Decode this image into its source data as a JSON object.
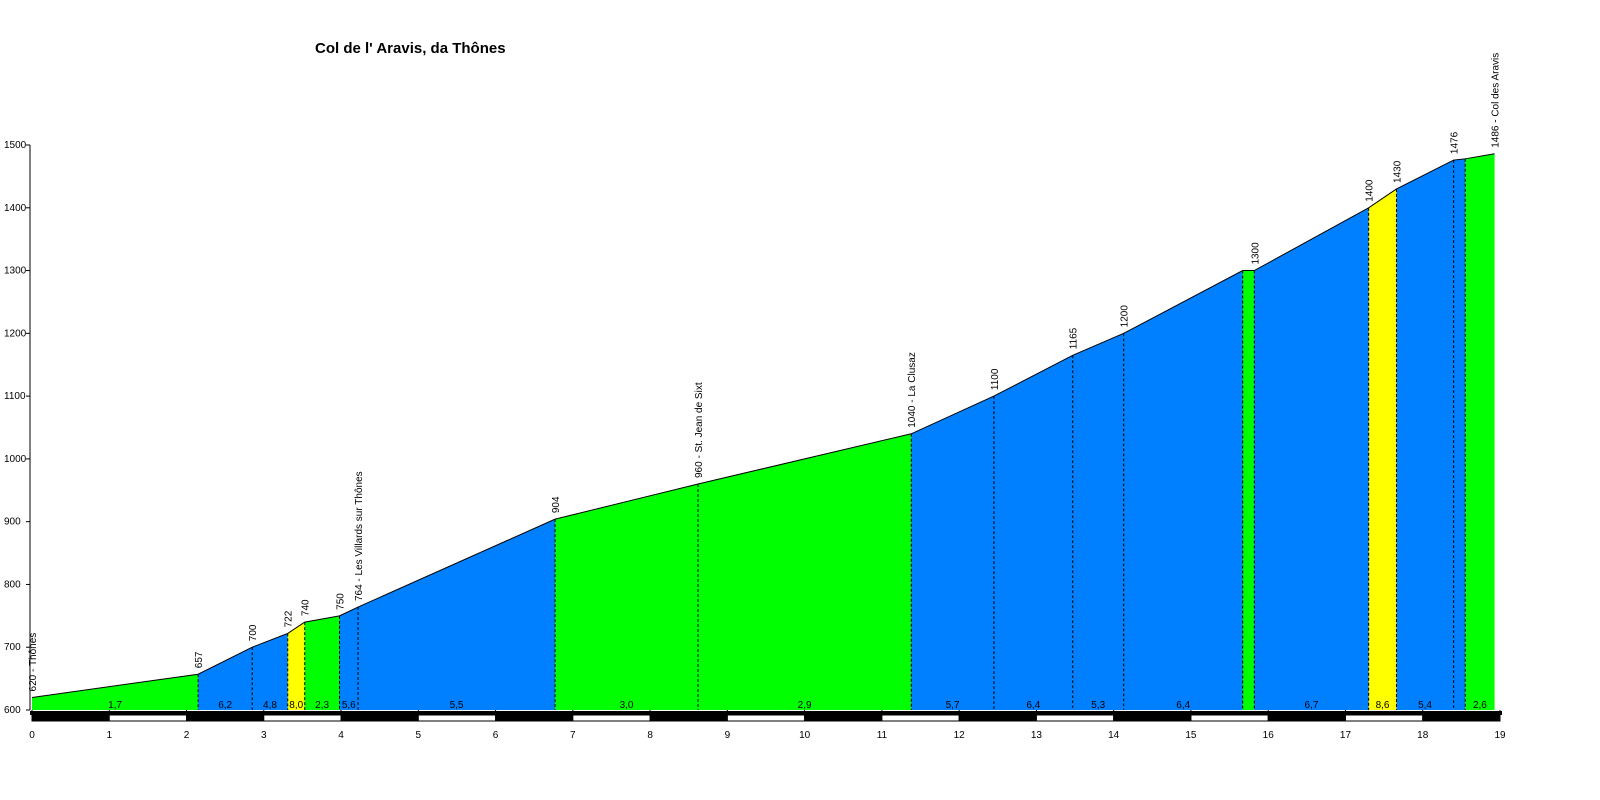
{
  "chart_data": {
    "type": "profile",
    "title": "Col de l' Aravis, da Thônes",
    "xlim": [
      0,
      19
    ],
    "ylim": [
      600,
      1500
    ],
    "xticks": [
      0,
      1,
      2,
      3,
      4,
      5,
      6,
      7,
      8,
      9,
      10,
      11,
      12,
      13,
      14,
      15,
      16,
      17,
      18,
      19
    ],
    "yticks": [
      600,
      700,
      800,
      900,
      1000,
      1100,
      1200,
      1300,
      1400,
      1500
    ],
    "points": {
      "x": [
        0,
        2.15,
        2.85,
        3.31,
        3.53,
        3.98,
        4.22,
        6.77,
        8.62,
        11.38,
        12.45,
        13.47,
        14.13,
        15.67,
        15.82,
        17.3,
        17.66,
        18.4,
        18.55,
        18.93
      ],
      "y": [
        620,
        657,
        700,
        722,
        740,
        750,
        764,
        904,
        960,
        1040,
        1100,
        1165,
        1200,
        1300,
        1300,
        1400,
        1430,
        1476,
        1478,
        1486
      ],
      "labels": [
        "620 - Thônes",
        "657",
        "700",
        "722",
        "740",
        "750",
        "764 - Les Villards sur Thônes",
        "904",
        "960 - St. Jean de Sixt",
        "1040 - La Clusaz",
        "1100",
        "1165",
        "1200",
        null,
        "1300",
        "1400",
        "1430",
        "1476",
        null,
        "1486 - Col des Aravis"
      ]
    },
    "segments": {
      "values": [
        1.7,
        6.2,
        4.8,
        8.0,
        2.3,
        5.6,
        5.5,
        3.0,
        2.9,
        5.7,
        6.4,
        5.3,
        6.4,
        null,
        6.7,
        8.6,
        5.4,
        null,
        2.6
      ],
      "value_labels": [
        "1,7",
        "6,2",
        "4,8",
        "8,0",
        "2,3",
        "5,6",
        "5,5",
        "3,0",
        "2,9",
        "5,7",
        "6,4",
        "5,3",
        "6,4",
        null,
        "6,7",
        "8,6",
        "5,4",
        null,
        "2,6"
      ],
      "colors": [
        "#00ff00",
        "#0080ff",
        "#0080ff",
        "#ffff00",
        "#00ff00",
        "#0080ff",
        "#0080ff",
        "#00ff00",
        "#00ff00",
        "#0080ff",
        "#0080ff",
        "#0080ff",
        "#0080ff",
        "#00ff00",
        "#0080ff",
        "#ffff00",
        "#0080ff",
        "#0080ff",
        "#00ff00"
      ]
    }
  }
}
